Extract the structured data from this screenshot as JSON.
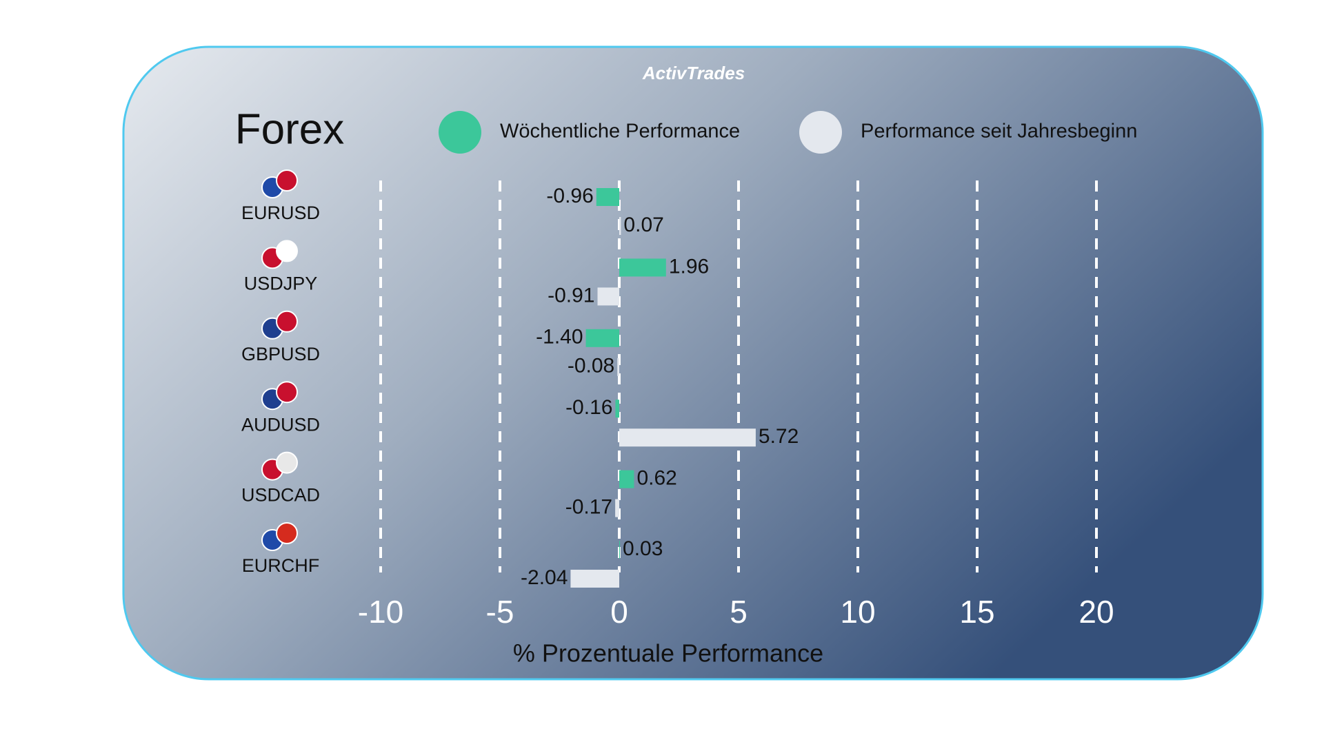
{
  "chart_data": {
    "type": "bar",
    "orientation": "horizontal",
    "logo": "ActivTrades",
    "title": "Forex",
    "x_label": "% Prozentuale Performance",
    "categories": [
      "EURUSD",
      "USDJPY",
      "GBPUSD",
      "AUDUSD",
      "USDCAD",
      "EURCHF"
    ],
    "series": [
      {
        "name": "Wöchentliche Performance",
        "color": "#3cc79a",
        "values": [
          -0.96,
          1.96,
          -1.4,
          -0.16,
          0.62,
          0.03
        ],
        "value_labels": [
          "-0.96",
          "1.96",
          "-1.40",
          "-0.16",
          "0.62",
          "0.03"
        ]
      },
      {
        "name": "Performance seit Jahresbeginn",
        "color": "#e4e8ee",
        "values": [
          0.07,
          -0.91,
          -0.08,
          5.72,
          -0.17,
          -2.04
        ],
        "value_labels": [
          "0.07",
          "-0.91",
          "-0.08",
          "5.72",
          "-0.17",
          "-2.04"
        ]
      }
    ],
    "xlim": [
      -10,
      20
    ],
    "xticks": [
      -10,
      -5,
      0,
      5,
      10,
      15,
      20
    ],
    "grid": true
  }
}
